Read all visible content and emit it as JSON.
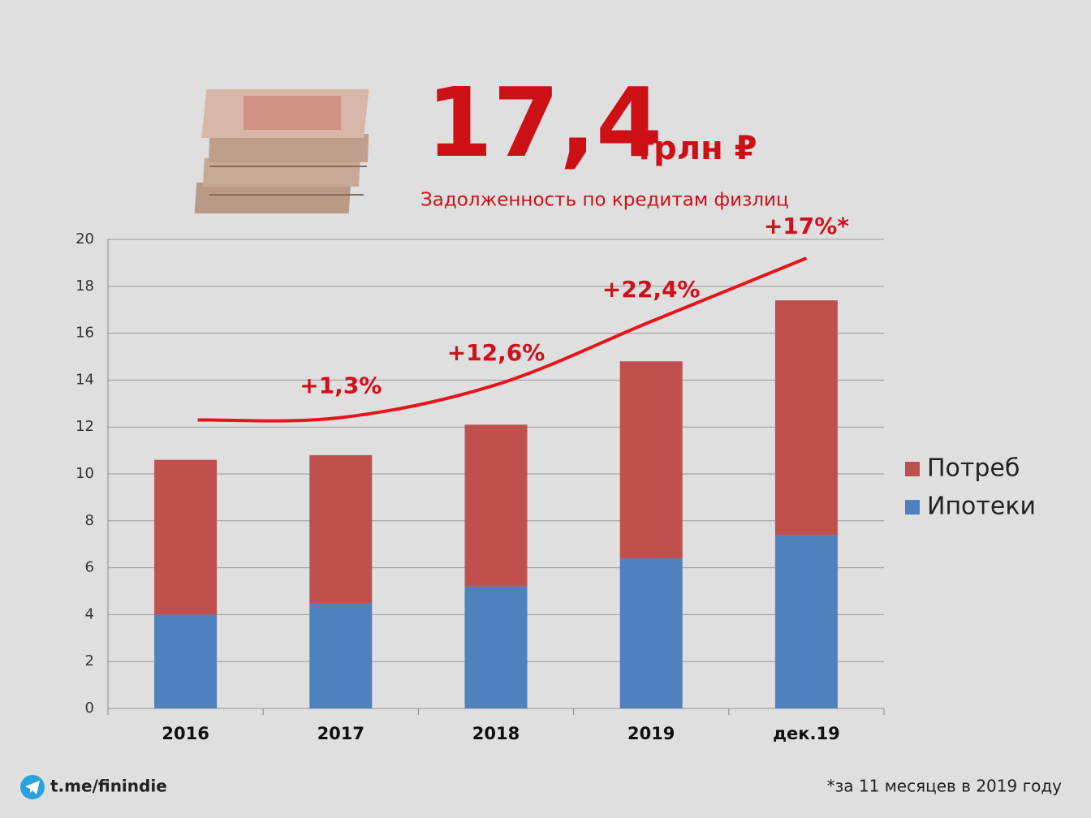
{
  "header": {
    "big_number": "17,4",
    "unit": "трлн ₽",
    "subtitle": "Задолженность по кредитам физлиц"
  },
  "chart_data": {
    "type": "stacked_bar",
    "categories": [
      "2016",
      "2017",
      "2018",
      "2019",
      "дек.19"
    ],
    "series": [
      {
        "name": "Ипотеки",
        "color": "#4f81bd",
        "values": [
          4.0,
          4.5,
          5.2,
          6.4,
          7.4
        ]
      },
      {
        "name": "Потреб",
        "color": "#c0504d",
        "values": [
          6.6,
          6.3,
          6.9,
          8.4,
          10.0
        ]
      }
    ],
    "trend": {
      "color": "#e8141c",
      "values": [
        12.3,
        12.4,
        13.8,
        16.5,
        19.2
      ],
      "labels": [
        null,
        "+1,3%",
        "+12,6%",
        "+22,4%",
        "+17%*"
      ]
    },
    "ylim": [
      0,
      20
    ],
    "yticks": [
      0,
      2,
      4,
      6,
      8,
      10,
      12,
      14,
      16,
      18,
      20
    ],
    "grid": true,
    "legend": "right"
  },
  "footer": {
    "link": "t.me/finindie",
    "note": "*за 11 месяцев в 2019 году"
  }
}
